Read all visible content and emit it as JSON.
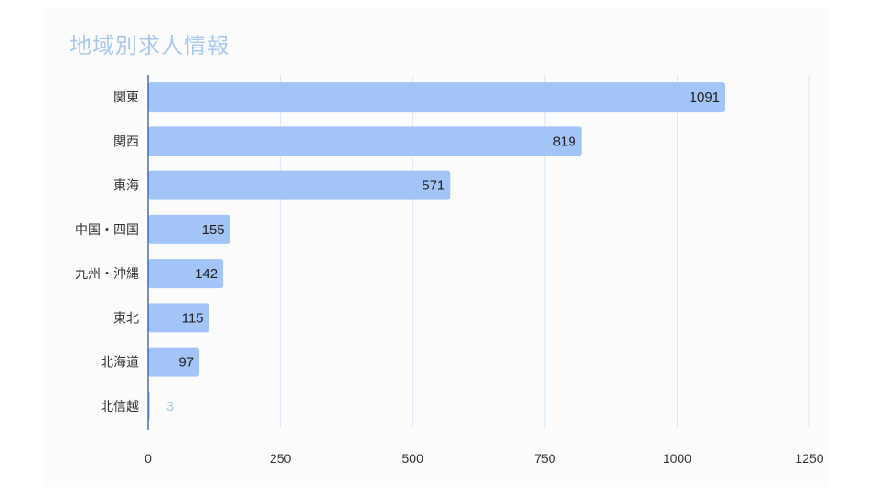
{
  "chart_data": {
    "type": "bar",
    "orientation": "horizontal",
    "title": "地域別求人情報",
    "categories": [
      "関東",
      "関西",
      "東海",
      "中国・四国",
      "九州・沖縄",
      "東北",
      "北海道",
      "北信越"
    ],
    "values": [
      1091,
      819,
      571,
      155,
      142,
      115,
      97,
      3
    ],
    "x_ticks": [
      "0",
      "250",
      "500",
      "750",
      "1000",
      "1250"
    ],
    "xlim": [
      0,
      1250
    ],
    "grid": true,
    "data_labels": true,
    "colors": {
      "bar": "#a3c4f7",
      "title": "#a9c9ef",
      "grid": "#d6e6f8",
      "axis": "#1f4e9b"
    }
  }
}
